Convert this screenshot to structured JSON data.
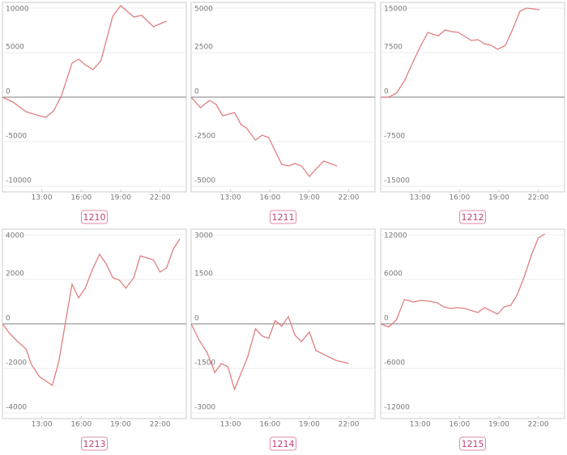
{
  "chart_data": [
    {
      "type": "line",
      "title": "1210",
      "x": [
        10,
        10.8,
        11.8,
        12.6,
        13.3,
        13.9,
        14.5,
        15.3,
        15.8,
        16.3,
        16.9,
        17.5,
        18.4,
        19.0,
        20.0,
        20.6,
        21.5,
        22.5
      ],
      "series": [
        {
          "color": "#e07f7f",
          "values": [
            0,
            -545,
            -1636,
            -2000,
            -2273,
            -1545,
            182,
            3818,
            4273,
            3636,
            3091,
            4091,
            9091,
            10273,
            9000,
            9182,
            7909,
            8545
          ]
        }
      ],
      "xlim": [
        10,
        24
      ],
      "xticks": [
        {
          "value": 13,
          "label": "13:00"
        },
        {
          "value": 16,
          "label": "16:00"
        },
        {
          "value": 19,
          "label": "19:00"
        },
        {
          "value": 22,
          "label": "22:00"
        }
      ],
      "ylim": [
        -10000,
        10000
      ],
      "yticks": [
        -10000,
        -5000,
        0,
        5000,
        10000
      ]
    },
    {
      "type": "line",
      "title": "1211",
      "x": [
        10,
        10.7,
        11.4,
        11.9,
        12.4,
        13.3,
        13.8,
        14.2,
        14.9,
        15.4,
        15.9,
        16.9,
        17.4,
        17.9,
        18.4,
        19.0,
        19.6,
        20.1,
        21.1
      ],
      "series": [
        {
          "color": "#e07f7f",
          "values": [
            0,
            -591,
            -182,
            -409,
            -1045,
            -864,
            -1545,
            -1727,
            -2409,
            -2136,
            -2273,
            -3773,
            -3864,
            -3727,
            -3864,
            -4455,
            -3955,
            -3591,
            -3864
          ]
        }
      ],
      "xlim": [
        10,
        24
      ],
      "xticks": [
        {
          "value": 13,
          "label": "13:00"
        },
        {
          "value": 16,
          "label": "16:00"
        },
        {
          "value": 19,
          "label": "19:00"
        },
        {
          "value": 22,
          "label": "22:00"
        }
      ],
      "ylim": [
        -5000,
        5000
      ],
      "yticks": [
        -5000,
        -2500,
        0,
        2500,
        5000
      ]
    },
    {
      "type": "line",
      "title": "1212",
      "x": [
        10.1,
        10.6,
        11.2,
        11.8,
        12.5,
        13.1,
        13.6,
        14.1,
        14.4,
        14.9,
        15.4,
        15.9,
        16.4,
        16.9,
        17.4,
        17.9,
        18.4,
        18.9,
        19.5,
        20.0,
        20.6,
        21.1,
        22.1
      ],
      "series": [
        {
          "color": "#e07f7f",
          "values": [
            0,
            0,
            682,
            2727,
            6136,
            8864,
            10909,
            10500,
            10364,
            11318,
            11045,
            10909,
            10227,
            9545,
            9682,
            9000,
            8727,
            8045,
            8727,
            11182,
            14455,
            15000,
            14727
          ]
        }
      ],
      "xlim": [
        10,
        24
      ],
      "xticks": [
        {
          "value": 13,
          "label": "13:00"
        },
        {
          "value": 16,
          "label": "16:00"
        },
        {
          "value": 19,
          "label": "19:00"
        },
        {
          "value": 22,
          "label": "22:00"
        }
      ],
      "ylim": [
        -15000,
        15000
      ],
      "yticks": [
        -15000,
        -7500,
        0,
        7500,
        15000
      ]
    },
    {
      "type": "line",
      "title": "1213",
      "x": [
        10,
        10.5,
        11.1,
        11.8,
        12.2,
        12.8,
        13.8,
        14.3,
        14.8,
        15.3,
        15.8,
        16.3,
        16.9,
        17.4,
        17.9,
        18.4,
        18.9,
        19.4,
        20.0,
        20.5,
        21.5,
        22.0,
        22.5,
        23.0,
        23.5
      ],
      "series": [
        {
          "color": "#e07f7f",
          "values": [
            0,
            -400,
            -764,
            -1127,
            -1818,
            -2364,
            -2764,
            -1673,
            73,
            1782,
            1164,
            1600,
            2509,
            3127,
            2691,
            2073,
            1964,
            1600,
            2073,
            3055,
            2873,
            2327,
            2509,
            3345,
            3818
          ]
        }
      ],
      "xlim": [
        10,
        24
      ],
      "xticks": [
        {
          "value": 13,
          "label": "13:00"
        },
        {
          "value": 16,
          "label": "16:00"
        },
        {
          "value": 19,
          "label": "19:00"
        },
        {
          "value": 22,
          "label": "22:00"
        }
      ],
      "ylim": [
        -4000,
        4000
      ],
      "yticks": [
        -4000,
        -2000,
        0,
        2000,
        4000
      ]
    },
    {
      "type": "line",
      "title": "1214",
      "x": [
        10,
        10.6,
        11.2,
        11.8,
        12.3,
        12.8,
        13.3,
        14.3,
        14.9,
        15.4,
        15.9,
        16.4,
        16.9,
        17.4,
        17.9,
        18.4,
        19.0,
        19.5,
        20.0,
        21.0,
        22.0
      ],
      "series": [
        {
          "color": "#e07f7f",
          "values": [
            0,
            -545,
            -955,
            -1636,
            -1336,
            -1445,
            -2209,
            -1118,
            -164,
            -409,
            -491,
            109,
            -82,
            245,
            -382,
            -600,
            -273,
            -900,
            -1009,
            -1227,
            -1336
          ]
        }
      ],
      "xlim": [
        10,
        24
      ],
      "xticks": [
        {
          "value": 13,
          "label": "13:00"
        },
        {
          "value": 16,
          "label": "16:00"
        },
        {
          "value": 19,
          "label": "19:00"
        },
        {
          "value": 22,
          "label": "22:00"
        }
      ],
      "ylim": [
        -3000,
        3000
      ],
      "yticks": [
        -3000,
        -1500,
        0,
        1500,
        3000
      ]
    },
    {
      "type": "line",
      "title": "1215",
      "x": [
        10,
        10.6,
        11.2,
        11.8,
        12.5,
        13.1,
        13.7,
        14.3,
        14.8,
        15.3,
        15.9,
        16.4,
        17.4,
        17.9,
        18.9,
        19.4,
        19.9,
        20.4,
        20.9,
        21.5,
        22.0,
        22.5
      ],
      "series": [
        {
          "color": "#e07f7f",
          "values": [
            0,
            -436,
            545,
            3273,
            2945,
            3164,
            3055,
            2836,
            2291,
            2073,
            2182,
            2073,
            1527,
            2182,
            1309,
            2291,
            2509,
            3927,
            6218,
            9382,
            11564,
            12109
          ]
        }
      ],
      "xlim": [
        10,
        24
      ],
      "xticks": [
        {
          "value": 13,
          "label": "13:00"
        },
        {
          "value": 16,
          "label": "16:00"
        },
        {
          "value": 19,
          "label": "19:00"
        },
        {
          "value": 22,
          "label": "22:00"
        }
      ],
      "ylim": [
        -12000,
        12000
      ],
      "yticks": [
        -12000,
        -6000,
        0,
        6000,
        12000
      ]
    }
  ]
}
